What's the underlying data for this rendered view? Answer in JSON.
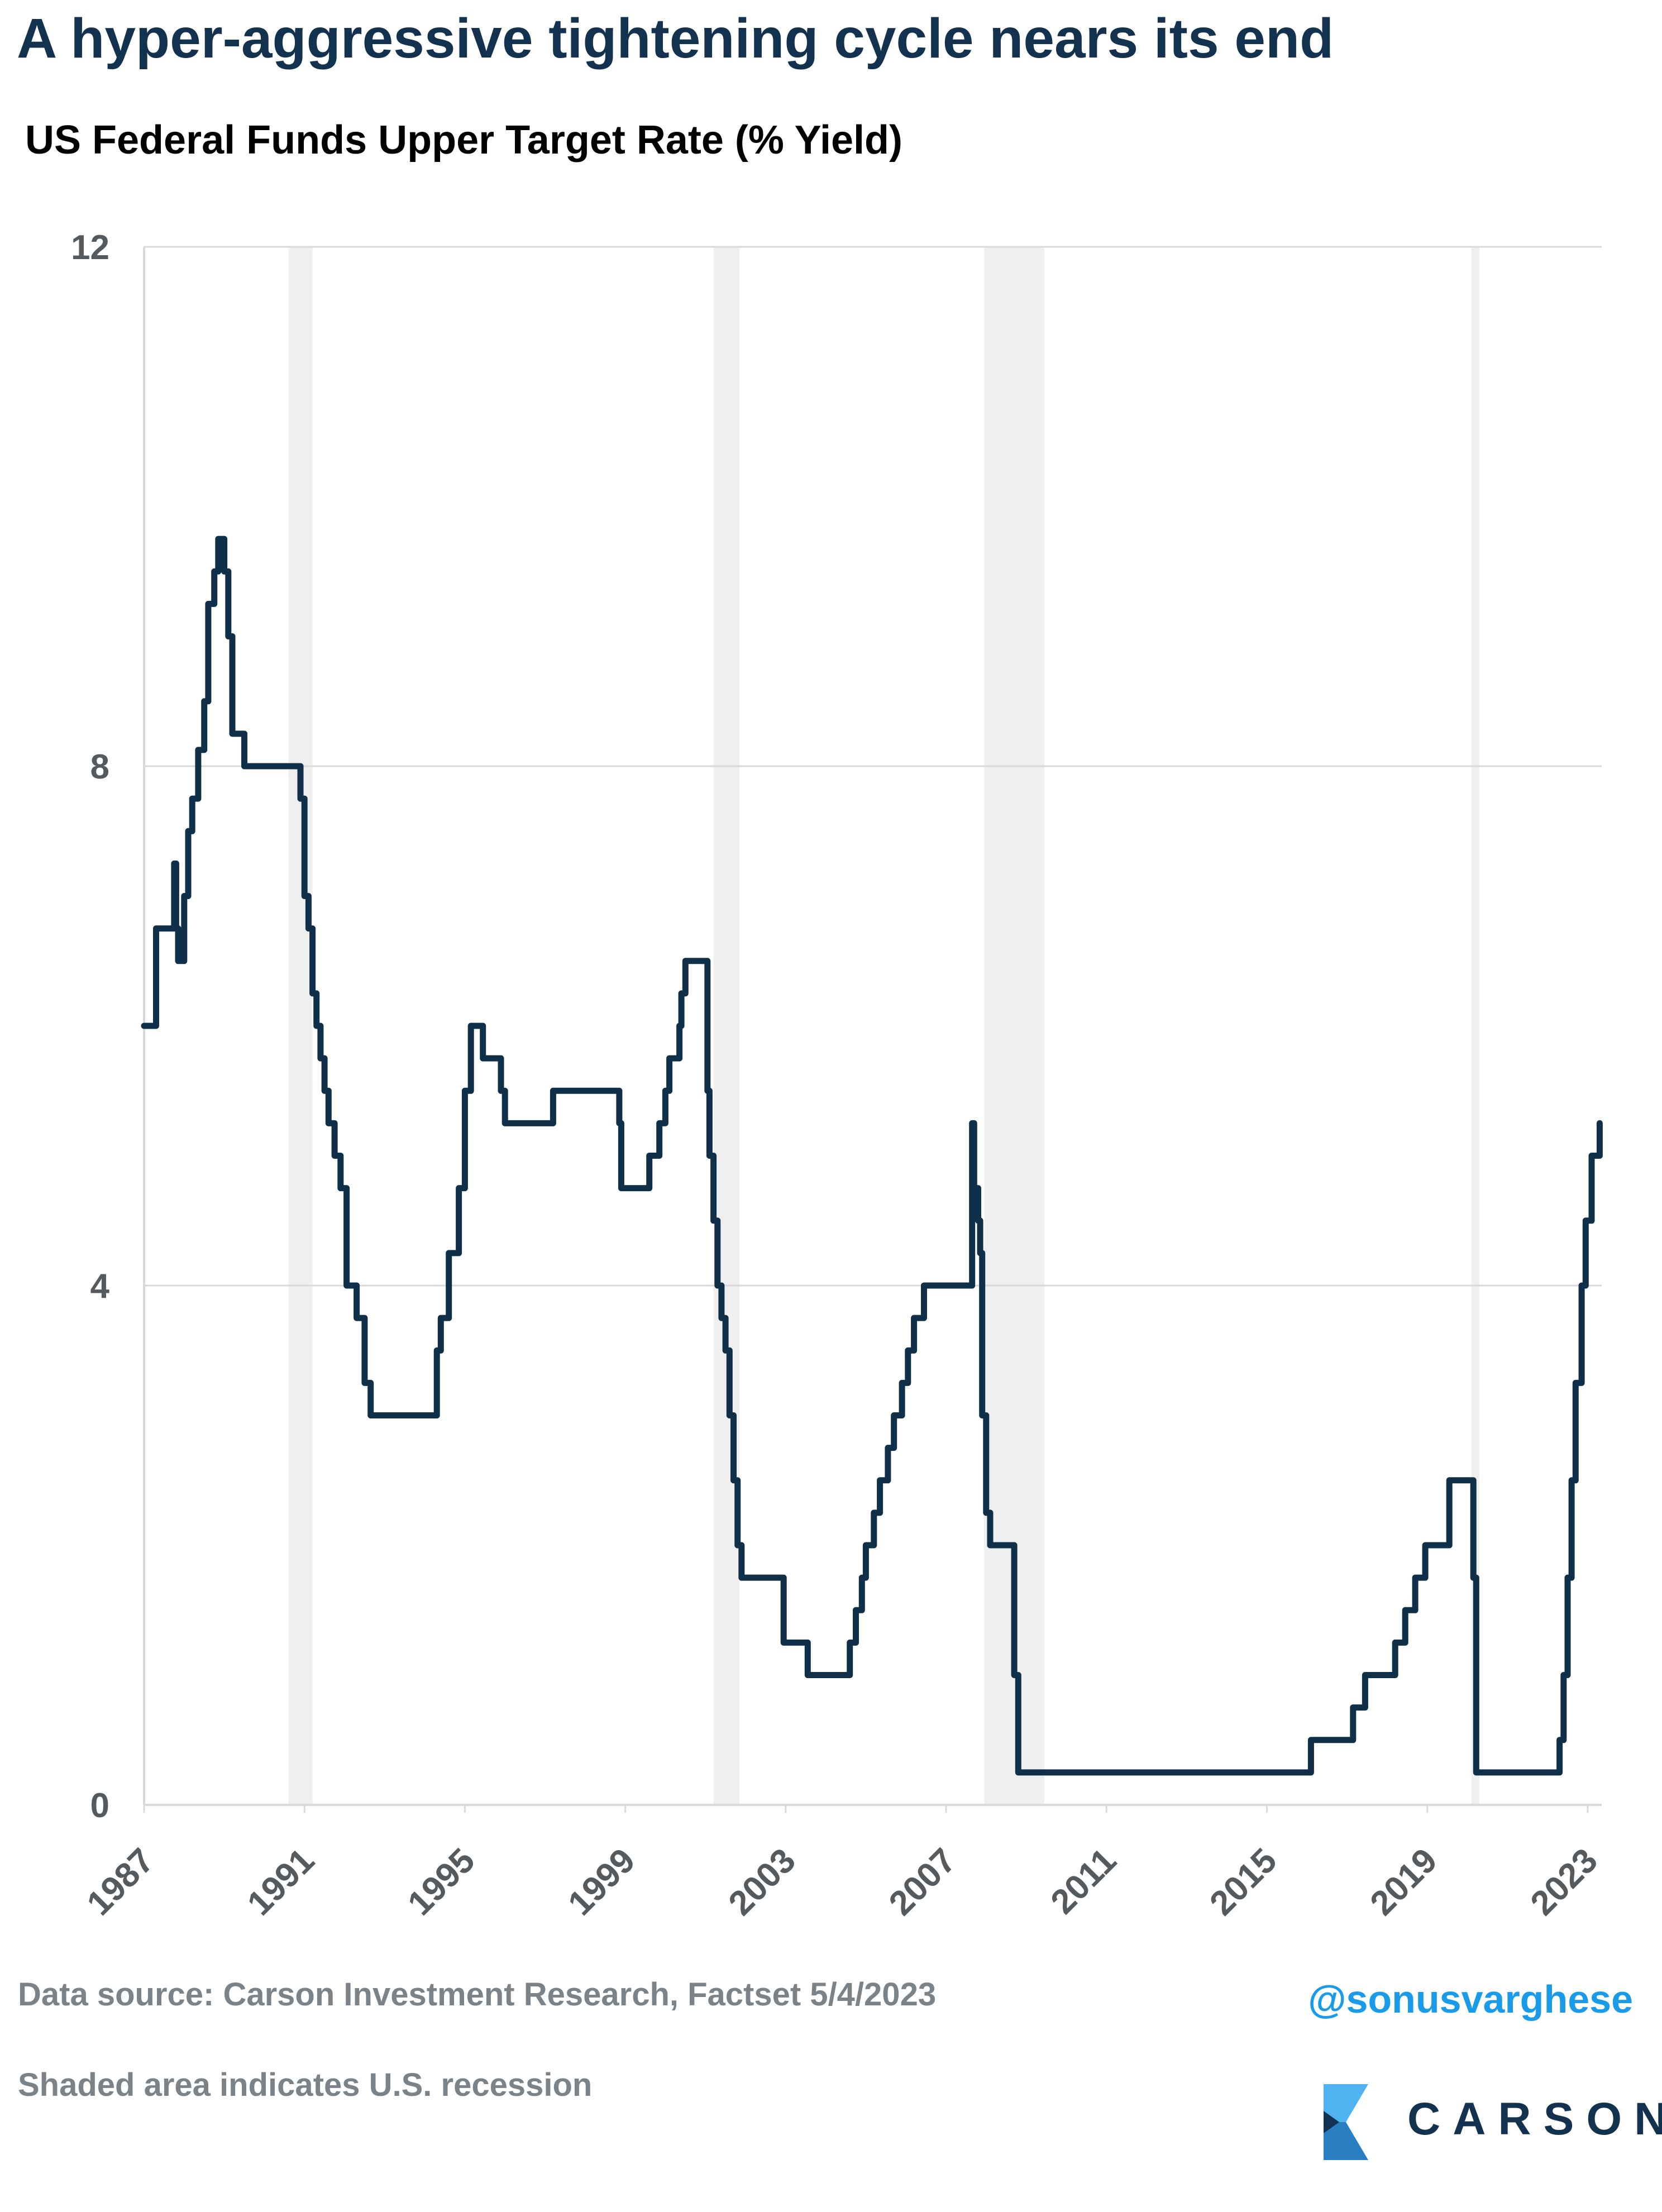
{
  "title": "A hyper-aggressive tightening cycle nears its end",
  "subtitle": "US Federal Funds Upper Target Rate (% Yield)",
  "footer": {
    "source": "Data source: Carson Investment Research, Factset   5/4/2023",
    "note": "Shaded area indicates U.S. recession",
    "handle": "@sonusvarghese",
    "logo_text": "CARSON"
  },
  "colors": {
    "line": "#10304a",
    "recession": "#efefef",
    "grid": "#d9d9d9",
    "axis_text": "#555a5f",
    "handle": "#1a9bea",
    "logo_light": "#4fb3f2",
    "logo_dark": "#12324f"
  },
  "chart_data": {
    "type": "line",
    "title": "US Federal Funds Upper Target Rate (% Yield)",
    "xlabel": "",
    "ylabel": "",
    "xlim": [
      1987.0,
      2023.35
    ],
    "ylim": [
      0,
      12
    ],
    "yticks": [
      0,
      4,
      8,
      12
    ],
    "xticks": [
      1987,
      1991,
      1995,
      1999,
      2003,
      2007,
      2011,
      2015,
      2019,
      2023
    ],
    "grid": true,
    "legend": "none",
    "recessions": [
      [
        1990.6,
        1991.2
      ],
      [
        2001.2,
        2001.85
      ],
      [
        2007.95,
        2009.45
      ],
      [
        2020.1,
        2020.3
      ]
    ],
    "series": [
      {
        "x": [
          1987.0,
          1987.2,
          1987.3,
          1987.7,
          1987.75,
          1987.8,
          1987.85,
          1988.0,
          1988.1,
          1988.2,
          1988.35,
          1988.5,
          1988.6,
          1988.75,
          1988.85,
          1988.95,
          1989.0,
          1989.1,
          1989.2,
          1989.3,
          1989.42,
          1989.5,
          1989.6,
          1990.9,
          1991.0,
          1991.1,
          1991.2,
          1991.3,
          1991.4,
          1991.5,
          1991.6,
          1991.75,
          1991.9,
          1992.05,
          1992.3,
          1992.5,
          1992.65,
          1992.8,
          1994.1,
          1994.3,
          1994.4,
          1994.6,
          1994.85,
          1995.0,
          1995.15,
          1995.45,
          1995.9,
          1996.0,
          1996.1,
          1997.1,
          1997.2,
          1998.7,
          1998.85,
          1998.9,
          1999.45,
          1999.6,
          1999.85,
          2000.0,
          2000.1,
          2000.35,
          2000.4,
          2000.5,
          2001.0,
          2001.05,
          2001.1,
          2001.2,
          2001.3,
          2001.4,
          2001.5,
          2001.6,
          2001.7,
          2001.8,
          2001.9,
          2002.85,
          2002.95,
          2003.45,
          2003.55,
          2004.45,
          2004.6,
          2004.75,
          2004.9,
          2005.0,
          2005.2,
          2005.35,
          2005.55,
          2005.7,
          2005.9,
          2006.05,
          2006.2,
          2006.45,
          2007.65,
          2007.7,
          2007.8,
          2007.85,
          2007.9,
          2008.0,
          2008.1,
          2008.3,
          2008.7,
          2008.8,
          2008.9,
          2016.0,
          2016.1,
          2016.95,
          2017.15,
          2017.45,
          2018.2,
          2018.45,
          2018.7,
          2018.95,
          2019.55,
          2019.75,
          2020.15,
          2020.22,
          2022.2,
          2022.3,
          2022.4,
          2022.5,
          2022.6,
          2022.7,
          2022.85,
          2022.95,
          2023.1,
          2023.3
        ],
        "values": [
          6.0,
          6.0,
          6.75,
          6.75,
          7.25,
          6.75,
          6.5,
          7.0,
          7.5,
          7.75,
          8.125,
          8.5,
          9.25,
          9.5,
          9.75,
          9.75,
          9.5,
          9.0,
          8.25,
          8.25,
          8.25,
          8.0,
          8.0,
          7.75,
          7.0,
          6.75,
          6.25,
          6.0,
          5.75,
          5.5,
          5.25,
          5.0,
          4.75,
          4.0,
          3.75,
          3.25,
          3.0,
          3.0,
          3.0,
          3.5,
          3.75,
          4.25,
          4.75,
          5.5,
          6.0,
          5.75,
          5.5,
          5.25,
          5.25,
          5.25,
          5.5,
          5.5,
          5.25,
          4.75,
          4.75,
          5.0,
          5.25,
          5.5,
          5.75,
          6.0,
          6.25,
          6.5,
          6.5,
          5.5,
          5.0,
          4.5,
          4.0,
          3.75,
          3.5,
          3.0,
          2.5,
          2.0,
          1.75,
          1.75,
          1.25,
          1.25,
          1.0,
          1.0,
          1.25,
          1.5,
          1.75,
          2.0,
          2.25,
          2.5,
          2.75,
          3.0,
          3.25,
          3.5,
          3.75,
          4.0,
          5.25,
          4.75,
          4.5,
          4.25,
          3.0,
          2.25,
          2.0,
          2.0,
          1.0,
          0.25,
          0.25,
          0.25,
          0.5,
          0.5,
          0.75,
          1.0,
          1.25,
          1.5,
          1.75,
          2.0,
          2.5,
          2.5,
          1.75,
          0.25,
          0.25,
          0.5,
          1.0,
          1.75,
          2.5,
          3.25,
          4.0,
          4.5,
          5.0,
          5.25
        ]
      }
    ]
  }
}
